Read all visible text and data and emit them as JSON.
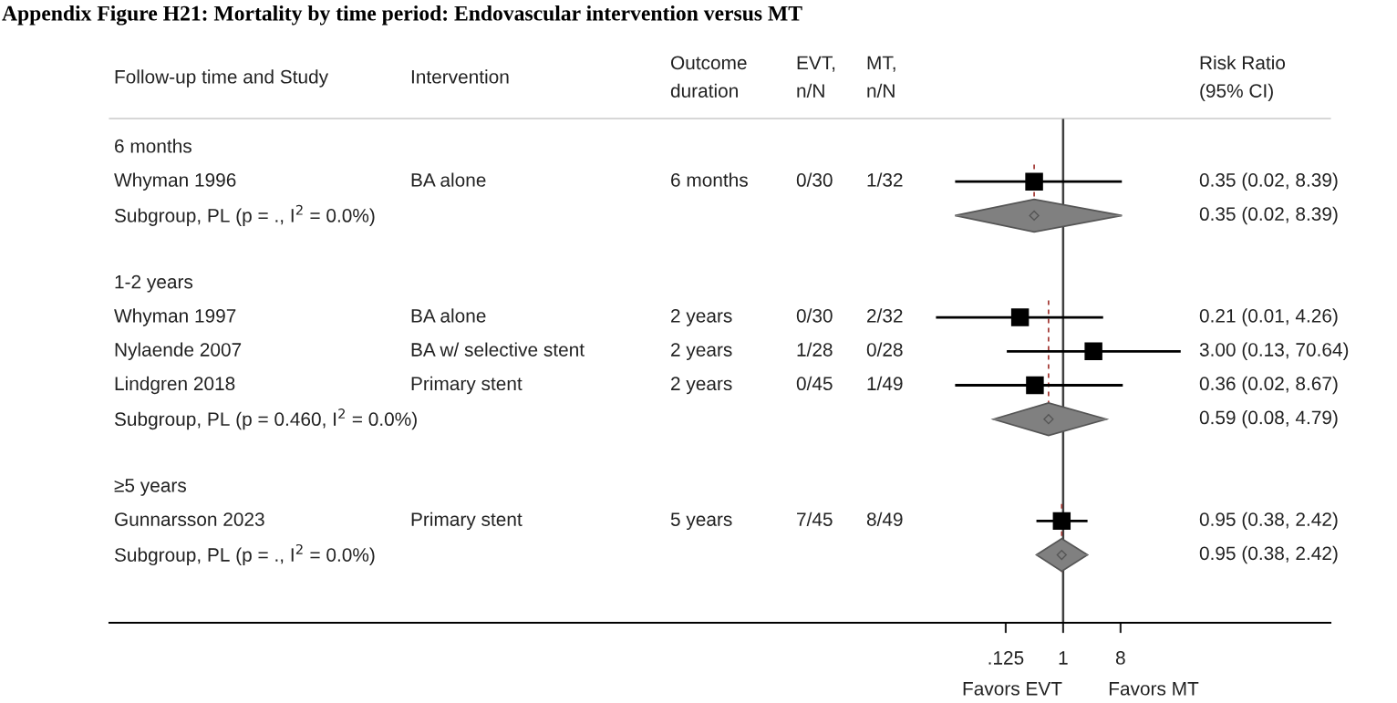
{
  "chart_data": {
    "type": "scatter",
    "orientation": "horizontal",
    "log": "x",
    "title": "Appendix Figure H21: Mortality by time period: Endovascular intervention versus MT",
    "ylabel": "Follow-up time and Study",
    "categories": [
      "6 months",
      "Whyman 1996",
      "Subgroup, PL (p = ., I$^{2}$ = 0.0%)",
      null,
      "1-2 years",
      "Whyman 1997",
      "Nylaende 2007",
      "Lindgren 2018",
      "Subgroup, PL (p = 0.460, I$^{2}$ = 0.0%)",
      null,
      "≥5 years",
      "Gunnarsson 2023",
      "Subgroup, PL (p = ., I$^{2}$ = 0.0%)"
    ],
    "xlim": [
      1e-15,
      16000
    ],
    "xticks": [
      {
        "value": 0.125,
        "label": ".125"
      },
      1,
      8
    ],
    "series": [
      {
        "marker": "square",
        "color": "#000000",
        "values": [
          null,
          0.35,
          null,
          null,
          null,
          0.21,
          3.0,
          0.36,
          null,
          null,
          null,
          0.95,
          null
        ],
        "errors": [
          null,
          [
            0.02,
            8.39
          ],
          null,
          null,
          null,
          [
            0.01,
            4.26
          ],
          [
            0.13,
            70.64
          ],
          [
            0.02,
            8.67
          ],
          null,
          null,
          null,
          [
            0.38,
            2.42
          ],
          null
        ]
      },
      {
        "marker": "diamond",
        "color": "#808080",
        "values": [
          null,
          null,
          0.35,
          null,
          null,
          null,
          null,
          null,
          0.59,
          null,
          null,
          null,
          0.95
        ],
        "errors": [
          null,
          null,
          [
            0.02,
            8.39
          ],
          null,
          null,
          null,
          null,
          null,
          [
            0.08,
            4.79
          ],
          null,
          null,
          null,
          [
            0.38,
            2.42
          ]
        ]
      }
    ],
    "ref_lines": [
      {
        "axis": "x",
        "value": 0.35,
        "color": "#a0322d",
        "line_style": "dashed"
      },
      {
        "axis": "x",
        "value": 0.59,
        "color": "#a0322d",
        "line_style": "dashed"
      },
      {
        "axis": "x",
        "value": 0.95,
        "color": "#a0322d",
        "line_style": "dashed"
      },
      {
        "axis": "x",
        "value": 1,
        "color": "#404040",
        "line_style": "solid"
      }
    ],
    "annotations": [
      "Intervention",
      "Outcome\nduration",
      "EVT,\nn/N",
      "MT,\nn/N",
      "Risk Ratio\n(95% CI)",
      "BA alone",
      "6 months",
      "0/30",
      "1/32",
      "0.35 (0.02, 8.39)",
      "0.35 (0.02, 8.39)",
      "BA alone",
      "2 years",
      "0/30",
      "2/32",
      "0.21 (0.01, 4.26)",
      "BA w/ selective stent",
      "2 years",
      "1/28",
      "0/28",
      "3.00 (0.13, 70.64)",
      "Primary stent",
      "2 years",
      "0/45",
      "1/49",
      "0.36 (0.02, 8.67)",
      "0.59 (0.08, 4.79)",
      "Primary stent",
      "5 years",
      "7/45",
      "8/49",
      "0.95 (0.38, 2.42)",
      "0.95 (0.38, 2.42)",
      "Favors EVT",
      "Favors MT"
    ]
  }
}
